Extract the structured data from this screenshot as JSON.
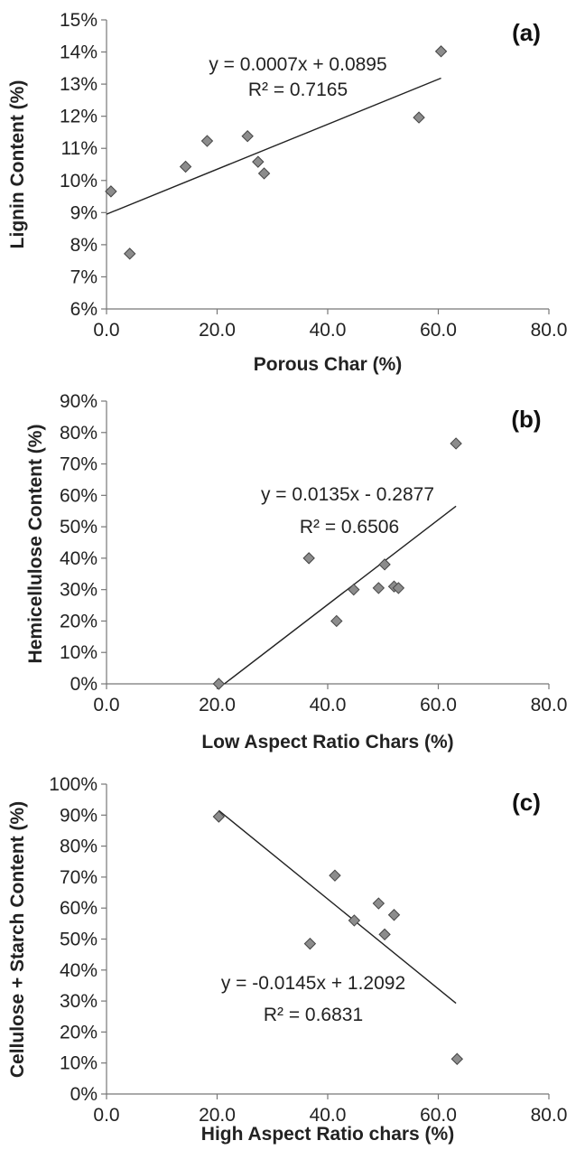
{
  "chart_data": [
    {
      "type": "scatter",
      "panel_label": "(a)",
      "xlabel": "Porous Char (%)",
      "ylabel": "Lignin Content (%)",
      "xlim": [
        0,
        80
      ],
      "ylim": [
        0.06,
        0.15
      ],
      "x_ticks": [
        "0.0",
        "20.0",
        "40.0",
        "60.0",
        "80.0"
      ],
      "y_ticks": [
        "6%",
        "7%",
        "8%",
        "9%",
        "10%",
        "11%",
        "12%",
        "13%",
        "14%",
        "15%"
      ],
      "x": [
        0.8,
        4.2,
        14.3,
        18.2,
        25.5,
        27.4,
        28.5,
        56.5,
        60.5
      ],
      "y": [
        0.0966,
        0.0772,
        0.1043,
        0.1123,
        0.1138,
        0.1058,
        0.1022,
        0.1196,
        0.1402
      ],
      "trendline": {
        "slope": 0.0007,
        "intercept": 0.0895,
        "x_range": [
          0,
          60.5
        ]
      },
      "equation": "y = 0.0007x + 0.0895",
      "r_squared": "R² = 0.7165",
      "grid": false,
      "legend": "none"
    },
    {
      "type": "scatter",
      "panel_label": "(b)",
      "xlabel": "Low Aspect Ratio Chars (%)",
      "ylabel": "Hemicellulose Content (%)",
      "xlim": [
        0,
        80
      ],
      "ylim": [
        0,
        0.9
      ],
      "x_ticks": [
        "0.0",
        "20.0",
        "40.0",
        "60.0",
        "80.0"
      ],
      "y_ticks": [
        "0%",
        "10%",
        "20%",
        "30%",
        "40%",
        "50%",
        "60%",
        "70%",
        "80%",
        "90%"
      ],
      "x": [
        20.3,
        36.6,
        41.6,
        44.7,
        49.2,
        50.3,
        52.0,
        52.8,
        63.2
      ],
      "y": [
        0.0,
        0.4,
        0.2,
        0.3,
        0.305,
        0.38,
        0.31,
        0.305,
        0.765
      ],
      "trendline": {
        "slope": 0.0135,
        "intercept": -0.2877,
        "x_range": [
          21.3,
          63.2
        ]
      },
      "equation": "y = 0.0135x - 0.2877",
      "r_squared": "R² = 0.6506",
      "grid": false,
      "legend": "none"
    },
    {
      "type": "scatter",
      "panel_label": "(c)",
      "xlabel": "High Aspect Ratio chars (%)",
      "ylabel": "Cellulose + Starch Content (%)",
      "xlim": [
        0,
        80
      ],
      "ylim": [
        0,
        1.0
      ],
      "x_ticks": [
        "0.0",
        "20.0",
        "40.0",
        "60.0",
        "80.0"
      ],
      "y_ticks": [
        "0%",
        "10%",
        "20%",
        "30%",
        "40%",
        "50%",
        "60%",
        "70%",
        "80%",
        "90%",
        "100%"
      ],
      "x": [
        20.3,
        36.8,
        41.3,
        44.8,
        49.2,
        50.3,
        52.0,
        63.4
      ],
      "y": [
        0.895,
        0.485,
        0.705,
        0.56,
        0.615,
        0.515,
        0.578,
        0.113
      ],
      "trendline": {
        "slope": -0.0145,
        "intercept": 1.2092,
        "x_range": [
          20.3,
          63.2
        ]
      },
      "equation": "y = -0.0145x + 1.2092",
      "r_squared": "R² = 0.6831",
      "grid": false,
      "legend": "none"
    }
  ]
}
